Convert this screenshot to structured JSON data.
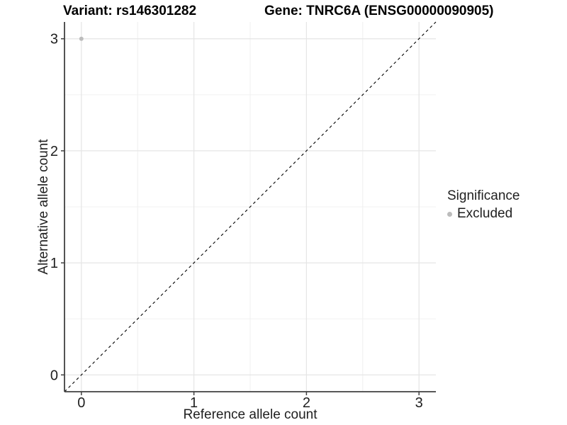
{
  "chart_data": {
    "type": "scatter",
    "title_variant": "Variant: rs146301282",
    "title_gene": "Gene: TNRC6A (ENSG00000090905)",
    "xlabel": "Reference allele count",
    "ylabel": "Alternative allele count",
    "xlim": [
      -0.15,
      3.15
    ],
    "ylim": [
      -0.15,
      3.15
    ],
    "x_major_ticks": [
      0,
      1,
      2,
      3
    ],
    "y_major_ticks": [
      0,
      1,
      2,
      3
    ],
    "x_minor_gridlines": [
      0.5,
      1.5,
      2.5
    ],
    "y_minor_gridlines": [
      0.5,
      1.5,
      2.5
    ],
    "grid": "major and minor light-gray gridlines on white background",
    "series": [
      {
        "name": "Excluded",
        "color": "#bcbcbc",
        "marker": "circle",
        "points": [
          {
            "x": 0,
            "y": 3
          }
        ]
      }
    ],
    "reference_line": {
      "description": "dashed identity line y = x",
      "slope": 1,
      "intercept": 0,
      "style": "dashed",
      "color": "#000000"
    },
    "legend": {
      "title": "Significance",
      "position": "right",
      "items": [
        {
          "label": "Excluded",
          "color": "#bcbcbc",
          "marker": "circle"
        }
      ]
    },
    "colors": {
      "background": "#ffffff",
      "grid_major": "#e5e5e5",
      "grid_minor": "#f0f0f0",
      "axis_line": "#404040",
      "tick_mark": "#404040",
      "tick_text": "#1f1f1f",
      "title_text": "#000000",
      "point": "#bcbcbc"
    }
  }
}
